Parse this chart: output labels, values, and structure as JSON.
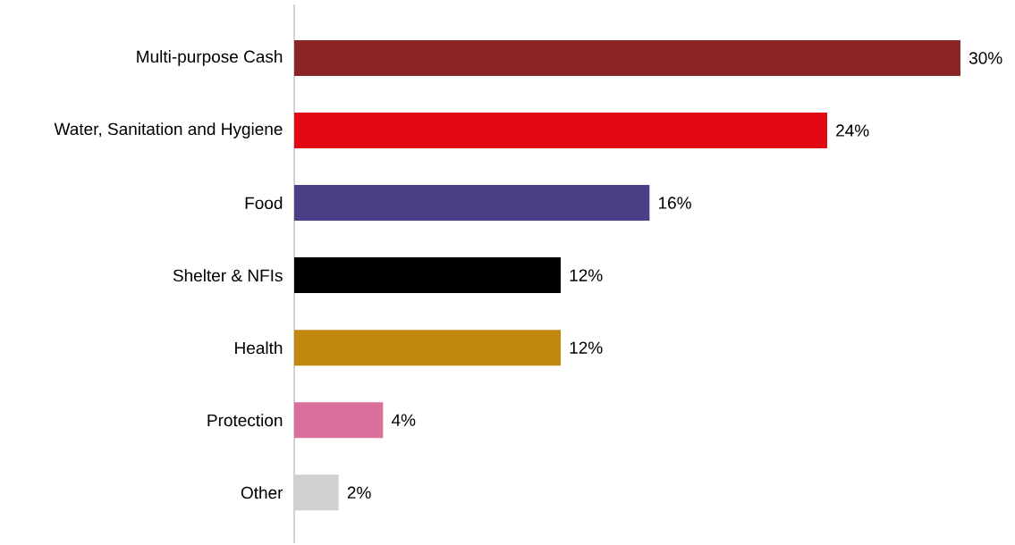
{
  "chart_data": {
    "type": "bar",
    "orientation": "horizontal",
    "categories": [
      "Multi-purpose Cash",
      "Water, Sanitation and Hygiene",
      "Food",
      "Shelter & NFIs",
      "Health",
      "Protection",
      "Other"
    ],
    "values": [
      30,
      24,
      16,
      12,
      12,
      4,
      2
    ],
    "colors": [
      "#8b2525",
      "#e30613",
      "#4b4087",
      "#000000",
      "#c1880f",
      "#db6f9b",
      "#d0d0d0"
    ],
    "value_labels": [
      "30%",
      "24%",
      "16%",
      "12%",
      "12%",
      "4%",
      "2%"
    ]
  }
}
